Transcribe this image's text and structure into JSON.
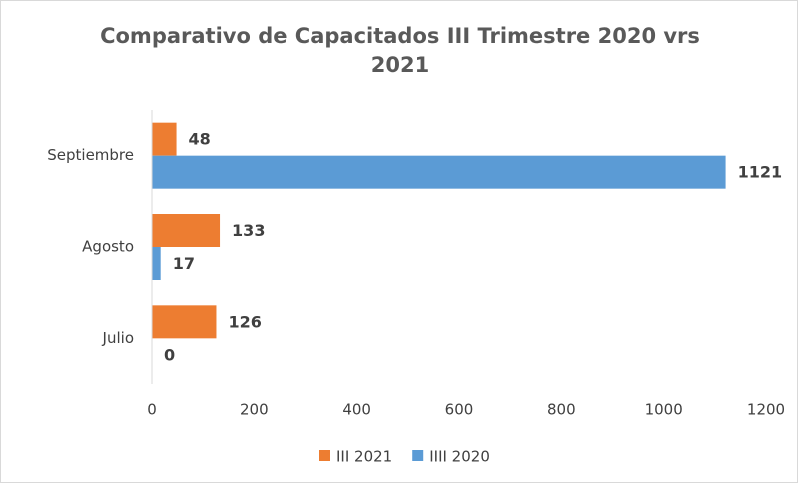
{
  "chart_data": {
    "type": "barh",
    "title": "Comparativo de Capacitados III Trimestre 2020 vrs 2021",
    "categories": [
      "Julio",
      "Agosto",
      "Septiembre"
    ],
    "series": [
      {
        "name": "III 2021",
        "color": "#ed7d31",
        "values": [
          126,
          133,
          48
        ]
      },
      {
        "name": "IIII 2020",
        "color": "#5b9bd5",
        "values": [
          0,
          17,
          1121
        ]
      }
    ],
    "xlim": [
      0,
      1200
    ],
    "xticks": [
      0,
      200,
      400,
      600,
      800,
      1000,
      1200
    ],
    "grid": false,
    "legend": "bottom"
  }
}
